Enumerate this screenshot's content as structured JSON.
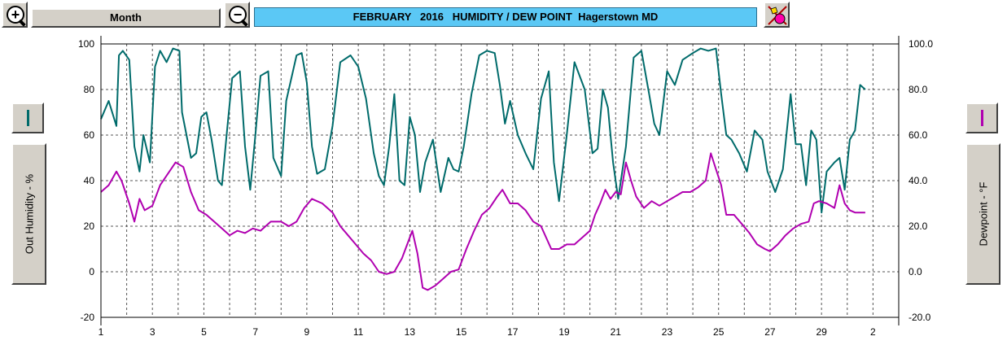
{
  "toolbar": {
    "zoom_in_symbol": "+",
    "zoom_out_symbol": "−",
    "period_label": "Month",
    "title": "FEBRUARY   2016   HUMIDITY / DEW POINT  Hagerstown MD"
  },
  "left_axis_button": {
    "label": "Out Humidity - %"
  },
  "right_axis_button": {
    "label": "Dewpoint - °F"
  },
  "chart_data": {
    "type": "line",
    "title": "FEBRUARY   2016   HUMIDITY / DEW POINT  Hagerstown MD",
    "xlabel": "",
    "ylabel_left": "Out Humidity - %",
    "ylabel_right": "Dewpoint - °F",
    "ylim": [
      -20,
      100
    ],
    "xlim": [
      1,
      32
    ],
    "grid": true,
    "x_tick_labels": [
      "1",
      "3",
      "5",
      "7",
      "9",
      "11",
      "13",
      "15",
      "17",
      "19",
      "21",
      "23",
      "25",
      "27",
      "29",
      "2"
    ],
    "y_tick_labels_left": [
      "100",
      "80",
      "60",
      "40",
      "20",
      "0",
      "-20"
    ],
    "y_tick_labels_right": [
      "100.0",
      "80.0",
      "60.0",
      "40.0",
      "20.0",
      "0.0",
      "-20.0"
    ],
    "series": [
      {
        "name": "Out Humidity - %",
        "color": "#006b6b",
        "axis": "left",
        "x": [
          1,
          1.3,
          1.6,
          1.7,
          1.85,
          2.1,
          2.3,
          2.5,
          2.65,
          2.9,
          3.1,
          3.3,
          3.55,
          3.8,
          4.05,
          4.15,
          4.5,
          4.7,
          4.9,
          5.1,
          5.3,
          5.55,
          5.7,
          5.9,
          6.1,
          6.4,
          6.6,
          6.8,
          7,
          7.2,
          7.5,
          7.7,
          8,
          8.2,
          8.6,
          8.8,
          9,
          9.2,
          9.4,
          9.7,
          10,
          10.3,
          10.7,
          11,
          11.3,
          11.6,
          11.8,
          12,
          12.2,
          12.4,
          12.6,
          12.8,
          13,
          13.2,
          13.4,
          13.6,
          13.9,
          14.2,
          14.5,
          14.7,
          14.9,
          15.1,
          15.4,
          15.7,
          16,
          16.3,
          16.5,
          16.7,
          16.9,
          17.2,
          17.5,
          17.8,
          18.1,
          18.4,
          18.6,
          18.8,
          19.1,
          19.4,
          19.8,
          20.1,
          20.3,
          20.5,
          20.7,
          20.9,
          21.1,
          21.4,
          21.7,
          22,
          22.3,
          22.5,
          22.7,
          23,
          23.3,
          23.6,
          24,
          24.3,
          24.6,
          24.9,
          25.1,
          25.3,
          25.5,
          25.8,
          26.1,
          26.4,
          26.7,
          26.9,
          27.2,
          27.5,
          27.8,
          28,
          28.2,
          28.4,
          28.6,
          28.8,
          29,
          29.2,
          29.5,
          29.7,
          29.9,
          30.1,
          30.3,
          30.5,
          30.7
        ],
        "values": [
          67,
          75,
          64,
          95,
          97,
          93,
          55,
          44,
          60,
          48,
          90,
          97,
          92,
          98,
          97,
          70,
          50,
          52,
          68,
          70,
          58,
          40,
          38,
          62,
          85,
          88,
          55,
          36,
          60,
          86,
          88,
          50,
          42,
          75,
          95,
          96,
          83,
          55,
          43,
          45,
          64,
          92,
          95,
          90,
          76,
          52,
          42,
          38,
          55,
          78,
          40,
          38,
          68,
          60,
          35,
          48,
          58,
          35,
          50,
          45,
          44,
          55,
          78,
          95,
          97,
          96,
          82,
          65,
          75,
          60,
          52,
          45,
          76,
          88,
          48,
          31,
          60,
          92,
          80,
          52,
          54,
          80,
          72,
          48,
          32,
          55,
          94,
          97,
          78,
          65,
          60,
          88,
          82,
          93,
          96,
          98,
          97,
          98,
          78,
          60,
          58,
          52,
          44,
          62,
          58,
          44,
          35,
          45,
          78,
          56,
          56,
          38,
          62,
          58,
          26,
          44,
          48,
          50,
          36,
          58,
          62,
          82,
          80
        ]
      },
      {
        "name": "Dewpoint - °F",
        "color": "#b000b0",
        "axis": "right",
        "x": [
          1,
          1.3,
          1.6,
          1.8,
          2.1,
          2.3,
          2.5,
          2.7,
          3,
          3.3,
          3.6,
          3.9,
          4.2,
          4.5,
          4.8,
          5.1,
          5.4,
          5.7,
          6,
          6.3,
          6.6,
          6.9,
          7.2,
          7.6,
          8,
          8.3,
          8.6,
          8.9,
          9.2,
          9.6,
          10,
          10.3,
          10.6,
          10.9,
          11.2,
          11.5,
          11.8,
          12.1,
          12.4,
          12.7,
          12.9,
          13.1,
          13.3,
          13.5,
          13.7,
          14,
          14.3,
          14.6,
          14.9,
          15.2,
          15.5,
          15.8,
          16.1,
          16.4,
          16.6,
          16.9,
          17.2,
          17.5,
          17.8,
          18.1,
          18.3,
          18.5,
          18.8,
          19.1,
          19.4,
          19.7,
          20,
          20.2,
          20.4,
          20.6,
          20.8,
          21,
          21.2,
          21.4,
          21.6,
          21.8,
          22.1,
          22.4,
          22.7,
          23,
          23.3,
          23.6,
          23.9,
          24.2,
          24.5,
          24.7,
          24.9,
          25.1,
          25.3,
          25.6,
          25.9,
          26.2,
          26.5,
          26.8,
          27,
          27.3,
          27.6,
          27.9,
          28.2,
          28.5,
          28.7,
          28.9,
          29.2,
          29.5,
          29.7,
          29.9,
          30.1,
          30.3,
          30.5,
          30.7
        ],
        "values": [
          35,
          38,
          44,
          40,
          30,
          22,
          32,
          27,
          29,
          38,
          43,
          48,
          46,
          35,
          27,
          25,
          22,
          19,
          16,
          18,
          17,
          19,
          18,
          22,
          22,
          20,
          22,
          28,
          32,
          30,
          26,
          20,
          16,
          12,
          8,
          5,
          0,
          -1,
          0,
          6,
          12,
          18,
          8,
          -7,
          -8,
          -6,
          -3,
          0,
          1,
          10,
          18,
          25,
          28,
          33,
          36,
          30,
          30,
          27,
          22,
          20,
          15,
          10,
          10,
          12,
          12,
          15,
          18,
          25,
          30,
          36,
          32,
          35,
          34,
          48,
          40,
          33,
          28,
          31,
          29,
          31,
          33,
          35,
          35,
          37,
          40,
          52,
          45,
          38,
          25,
          25,
          21,
          17,
          12,
          10,
          9,
          12,
          16,
          19,
          21,
          22,
          30,
          31,
          30,
          28,
          38,
          30,
          27,
          26,
          26,
          26
        ]
      }
    ]
  }
}
